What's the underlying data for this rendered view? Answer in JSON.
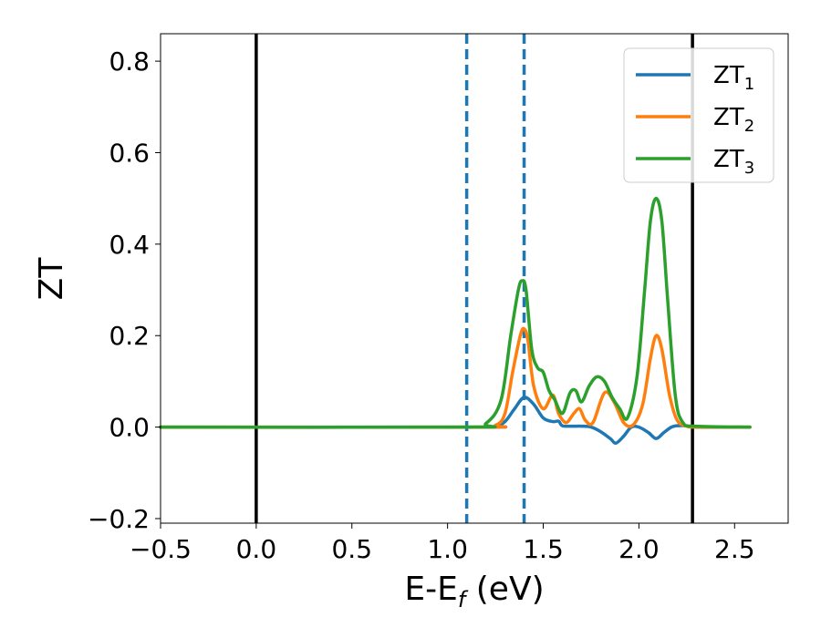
{
  "chart_data": {
    "type": "line",
    "title": "",
    "xlabel": "E-E",
    "xlabel_sub": "f",
    "xlabel_unit": " (eV)",
    "ylabel": "ZT",
    "xlim": [
      -0.5,
      2.78
    ],
    "ylim": [
      -0.21,
      0.86
    ],
    "xticks": [
      -0.5,
      0.0,
      0.5,
      1.0,
      1.5,
      2.0,
      2.5
    ],
    "xtick_labels": [
      "−0.5",
      "0.0",
      "0.5",
      "1.0",
      "1.5",
      "2.0",
      "2.5"
    ],
    "yticks": [
      -0.2,
      0.0,
      0.2,
      0.4,
      0.6,
      0.8
    ],
    "ytick_labels": [
      "−0.2",
      "0.0",
      "0.2",
      "0.4",
      "0.6",
      "0.8"
    ],
    "grid": false,
    "legend_position": "top-right",
    "vlines": [
      {
        "x": 0.0,
        "style": "solid",
        "color": "#000000"
      },
      {
        "x": 2.28,
        "style": "solid",
        "color": "#000000"
      },
      {
        "x": 1.1,
        "style": "dashed",
        "color": "#1f77b4"
      },
      {
        "x": 1.4,
        "style": "dashed",
        "color": "#1f77b4"
      }
    ],
    "series": [
      {
        "name": "ZT",
        "name_sub": "1",
        "color": "#1f77b4",
        "x": [
          -0.5,
          1.15,
          1.25,
          1.3,
          1.35,
          1.4,
          1.45,
          1.5,
          1.55,
          1.58,
          1.6,
          1.65,
          1.7,
          1.75,
          1.8,
          1.85,
          1.88,
          1.92,
          1.96,
          2.0,
          2.05,
          2.09,
          2.13,
          2.17,
          2.2,
          2.25,
          2.3,
          2.58
        ],
        "values": [
          0.0,
          0.0,
          0.002,
          0.012,
          0.04,
          0.065,
          0.05,
          0.02,
          0.012,
          0.013,
          0.003,
          0.002,
          0.002,
          0.0,
          -0.01,
          -0.025,
          -0.035,
          -0.02,
          0.0,
          0.0,
          -0.012,
          -0.025,
          -0.012,
          0.0,
          0.003,
          0.003,
          0.0,
          0.0
        ]
      },
      {
        "name": "ZT",
        "name_sub": "2",
        "color": "#ff7f0e",
        "x": [
          -0.5,
          1.15,
          1.25,
          1.3,
          1.34,
          1.38,
          1.4,
          1.42,
          1.45,
          1.5,
          1.55,
          1.58,
          1.62,
          1.66,
          1.69,
          1.72,
          1.76,
          1.82,
          1.87,
          1.92,
          1.97,
          2.02,
          2.06,
          2.09,
          2.12,
          2.16,
          2.2,
          2.25,
          2.3,
          2.58
        ],
        "values": [
          0.0,
          0.0,
          0.004,
          0.03,
          0.12,
          0.2,
          0.215,
          0.19,
          0.09,
          0.04,
          0.07,
          0.03,
          0.01,
          0.03,
          0.04,
          0.015,
          0.01,
          0.075,
          0.055,
          0.01,
          0.005,
          0.05,
          0.15,
          0.2,
          0.17,
          0.07,
          0.015,
          0.002,
          0.0,
          0.0
        ]
      },
      {
        "name": "ZT",
        "name_sub": "3",
        "color": "#2ca02c",
        "x": [
          -0.5,
          1.1,
          1.2,
          1.28,
          1.33,
          1.37,
          1.39,
          1.41,
          1.44,
          1.47,
          1.5,
          1.53,
          1.56,
          1.6,
          1.64,
          1.67,
          1.7,
          1.74,
          1.78,
          1.82,
          1.86,
          1.9,
          1.94,
          1.99,
          2.03,
          2.06,
          2.09,
          2.12,
          2.15,
          2.19,
          2.23,
          2.3,
          2.58
        ],
        "values": [
          0.0,
          0.0,
          0.008,
          0.06,
          0.2,
          0.3,
          0.32,
          0.3,
          0.17,
          0.13,
          0.12,
          0.08,
          0.06,
          0.03,
          0.075,
          0.08,
          0.055,
          0.09,
          0.11,
          0.1,
          0.065,
          0.04,
          0.02,
          0.11,
          0.3,
          0.45,
          0.5,
          0.45,
          0.28,
          0.07,
          0.01,
          0.002,
          0.0
        ]
      }
    ]
  }
}
